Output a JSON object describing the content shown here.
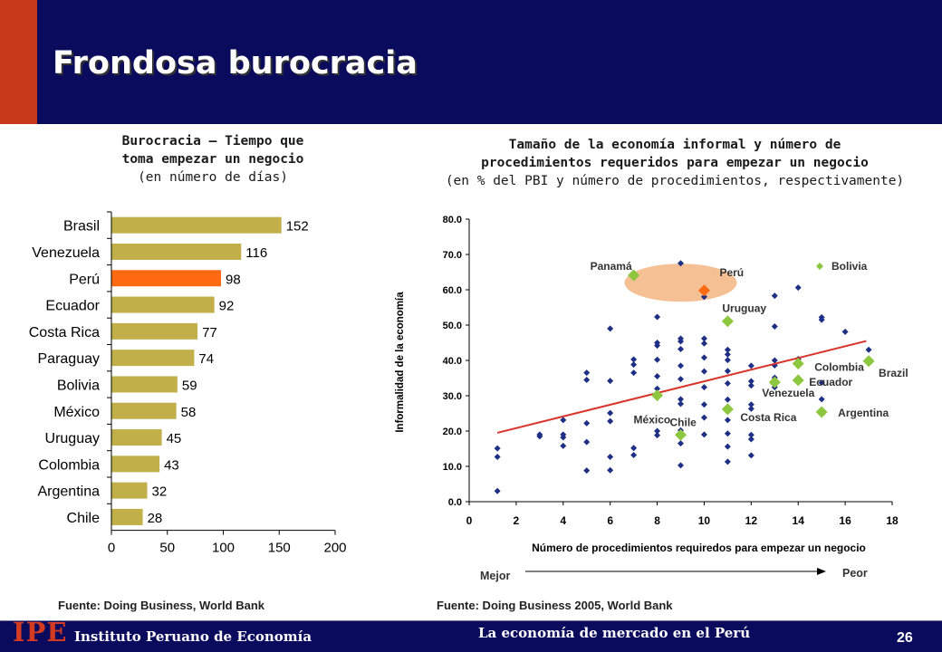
{
  "header": {
    "title": "Frondosa burocracia",
    "colors": {
      "band": "#0b0b5e",
      "accent": "#c8381a"
    }
  },
  "left_panel": {
    "title_line1": "Burocracia – Tiempo que",
    "title_line2": "toma empezar un negocio",
    "subtitle": "(en número de días)",
    "source": "Fuente: Doing Business, World Bank"
  },
  "right_panel": {
    "title_line1": "Tamaño de la economía informal y número de",
    "title_line2": "procedimientos requeridos para empezar un negocio",
    "subtitle": "(en % del PBI y número de procedimientos, respectivamente)",
    "source": "Fuente: Doing Business 2005, World Bank",
    "better_label": "Mejor",
    "worse_label": "Peor"
  },
  "chart_data": [
    {
      "type": "bar",
      "orientation": "horizontal",
      "categories": [
        "Brasil",
        "Venezuela",
        "Perú",
        "Ecuador",
        "Costa Rica",
        "Paraguay",
        "Bolivia",
        "México",
        "Uruguay",
        "Colombia",
        "Argentina",
        "Chile"
      ],
      "values": [
        152,
        116,
        98,
        92,
        77,
        74,
        59,
        58,
        45,
        43,
        32,
        28
      ],
      "xlim": [
        0,
        200
      ],
      "xticks": [
        0,
        50,
        100,
        150,
        200
      ],
      "highlight": "Perú",
      "colors": {
        "bar": "#c1b04a",
        "highlight": "#ff6a13"
      },
      "grid": false
    },
    {
      "type": "scatter",
      "xlabel": "Número de procedimientos  requiredos para empezar un negocio",
      "ylabel": "Informalidad de la economía",
      "xlim": [
        0,
        18
      ],
      "ylim": [
        0,
        80
      ],
      "xticks": [
        "0",
        "2",
        "4",
        "6",
        "8",
        "10",
        "12",
        "14",
        "16",
        "18"
      ],
      "yticks": [
        "0.0",
        "10.0",
        "20.0",
        "30.0",
        "40.0",
        "50.0",
        "60.0",
        "70.0",
        "80.0"
      ],
      "legend": {
        "label": "Bolivia",
        "position": "top-right"
      },
      "colors": {
        "other": "#1e2f86",
        "latam": "#8dc63f",
        "peru": "#ff6a13",
        "trend": "#d9342b",
        "highlight": "#f5b98a"
      },
      "trendline": {
        "x": [
          1.2,
          16.9
        ],
        "y": [
          19.5,
          45.5
        ]
      },
      "other_points": [
        [
          1.2,
          3.0
        ],
        [
          1.2,
          12.7
        ],
        [
          1.2,
          15.1
        ],
        [
          3,
          18.5
        ],
        [
          3,
          19.0
        ],
        [
          4,
          15.8
        ],
        [
          4,
          18.2
        ],
        [
          4,
          19.0
        ],
        [
          4,
          23.1
        ],
        [
          5,
          8.8
        ],
        [
          5,
          16.9
        ],
        [
          5,
          22.2
        ],
        [
          5,
          34.5
        ],
        [
          5,
          36.5
        ],
        [
          6,
          8.9
        ],
        [
          6,
          12.7
        ],
        [
          6,
          22.8
        ],
        [
          6,
          25.1
        ],
        [
          6,
          34.2
        ],
        [
          6,
          49.0
        ],
        [
          7,
          13.2
        ],
        [
          7,
          15.2
        ],
        [
          7,
          36.5
        ],
        [
          7,
          38.8
        ],
        [
          7,
          40.3
        ],
        [
          8,
          18.8
        ],
        [
          8,
          20.0
        ],
        [
          8,
          29.5
        ],
        [
          8,
          32.0
        ],
        [
          8,
          35.5
        ],
        [
          8,
          40.2
        ],
        [
          8,
          44.2
        ],
        [
          8,
          45.0
        ],
        [
          8,
          52.3
        ],
        [
          9,
          10.3
        ],
        [
          9,
          16.5
        ],
        [
          9,
          20.2
        ],
        [
          9,
          27.7
        ],
        [
          9,
          29.0
        ],
        [
          9,
          34.7
        ],
        [
          9,
          38.5
        ],
        [
          9,
          43.2
        ],
        [
          9,
          45.4
        ],
        [
          9,
          46.2
        ],
        [
          9,
          67.5
        ],
        [
          10,
          19.0
        ],
        [
          10,
          23.8
        ],
        [
          10,
          27.5
        ],
        [
          10,
          32.4
        ],
        [
          10,
          36.9
        ],
        [
          10,
          40.8
        ],
        [
          10,
          44.8
        ],
        [
          10,
          46.2
        ],
        [
          10,
          58.0
        ],
        [
          11,
          11.3
        ],
        [
          11,
          15.6
        ],
        [
          11,
          19.3
        ],
        [
          11,
          23.1
        ],
        [
          11,
          28.9
        ],
        [
          11,
          33.5
        ],
        [
          11,
          37.0
        ],
        [
          11,
          40.1
        ],
        [
          11,
          41.7
        ],
        [
          11,
          43.0
        ],
        [
          12,
          13.1
        ],
        [
          12,
          17.7
        ],
        [
          12,
          18.9
        ],
        [
          12,
          26.3
        ],
        [
          12,
          27.5
        ],
        [
          12,
          32.9
        ],
        [
          12,
          34.1
        ],
        [
          12,
          38.5
        ],
        [
          13,
          32.4
        ],
        [
          13,
          35.1
        ],
        [
          13,
          38.6
        ],
        [
          13,
          40.0
        ],
        [
          13,
          49.6
        ],
        [
          13,
          58.3
        ],
        [
          14,
          35.0
        ],
        [
          14,
          40.4
        ],
        [
          14,
          60.6
        ],
        [
          15,
          29.0
        ],
        [
          15,
          33.7
        ],
        [
          15,
          51.5
        ],
        [
          15,
          52.2
        ],
        [
          16,
          48.1
        ],
        [
          17,
          43.0
        ]
      ],
      "labeled_points": [
        {
          "label": "Panamá",
          "x": 7,
          "y": 64.1,
          "group": "latam"
        },
        {
          "label": "Perú",
          "x": 10,
          "y": 59.8,
          "group": "peru"
        },
        {
          "label": "Uruguay",
          "x": 11,
          "y": 51.1,
          "group": "latam"
        },
        {
          "label": "Colombia",
          "x": 14,
          "y": 39.1,
          "group": "latam"
        },
        {
          "label": "Brazil",
          "x": 17,
          "y": 39.8,
          "group": "latam"
        },
        {
          "label": "Ecuador",
          "x": 14,
          "y": 34.4,
          "group": "latam"
        },
        {
          "label": "Venezuela",
          "x": 13,
          "y": 33.8,
          "group": "latam"
        },
        {
          "label": "México",
          "x": 8,
          "y": 30.1,
          "group": "latam"
        },
        {
          "label": "Costa Rica",
          "x": 11,
          "y": 26.2,
          "group": "latam"
        },
        {
          "label": "Argentina",
          "x": 15,
          "y": 25.4,
          "group": "latam"
        },
        {
          "label": "Chile",
          "x": 9,
          "y": 18.9,
          "group": "latam"
        }
      ]
    }
  ],
  "footer": {
    "logo": "IPE",
    "institute": "Instituto Peruano de Economía",
    "tagline": "La economía de mercado en el Perú",
    "page_number": "26",
    "colors": {
      "band": "#0b0b5e",
      "logo": "#d23a22"
    }
  }
}
